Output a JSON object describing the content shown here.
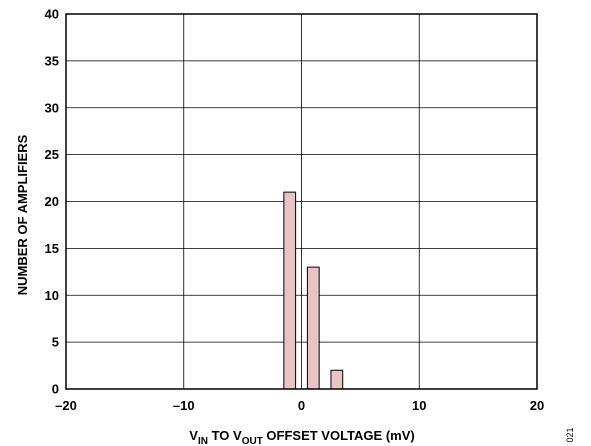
{
  "chart_data": {
    "type": "bar",
    "title": "",
    "xlabel": {
      "parts": [
        {
          "text": "V",
          "sub": false
        },
        {
          "text": "IN",
          "sub": true
        },
        {
          "text": " TO V",
          "sub": false
        },
        {
          "text": "OUT",
          "sub": true
        },
        {
          "text": " OFFSET VOLTAGE (mV)",
          "sub": false
        }
      ]
    },
    "ylabel": "NUMBER OF AMPLIFIERS",
    "xlim": [
      -20,
      20
    ],
    "ylim": [
      0,
      40
    ],
    "xticks": [
      -20,
      -10,
      0,
      10,
      20
    ],
    "xtick_labels": [
      "–20",
      "–10",
      "0",
      "10",
      "20"
    ],
    "yticks": [
      0,
      5,
      10,
      15,
      20,
      25,
      30,
      35,
      40
    ],
    "ytick_labels": [
      "0",
      "5",
      "10",
      "15",
      "20",
      "25",
      "30",
      "35",
      "40"
    ],
    "bin_width": 1,
    "bars": [
      {
        "x": -1,
        "value": 21
      },
      {
        "x": 1,
        "value": 13
      },
      {
        "x": 3,
        "value": 2
      }
    ],
    "grid": true,
    "bar_color": "#e8c4c4",
    "bar_edge_color": "#000000",
    "legend": "none"
  },
  "figure_code": "021"
}
